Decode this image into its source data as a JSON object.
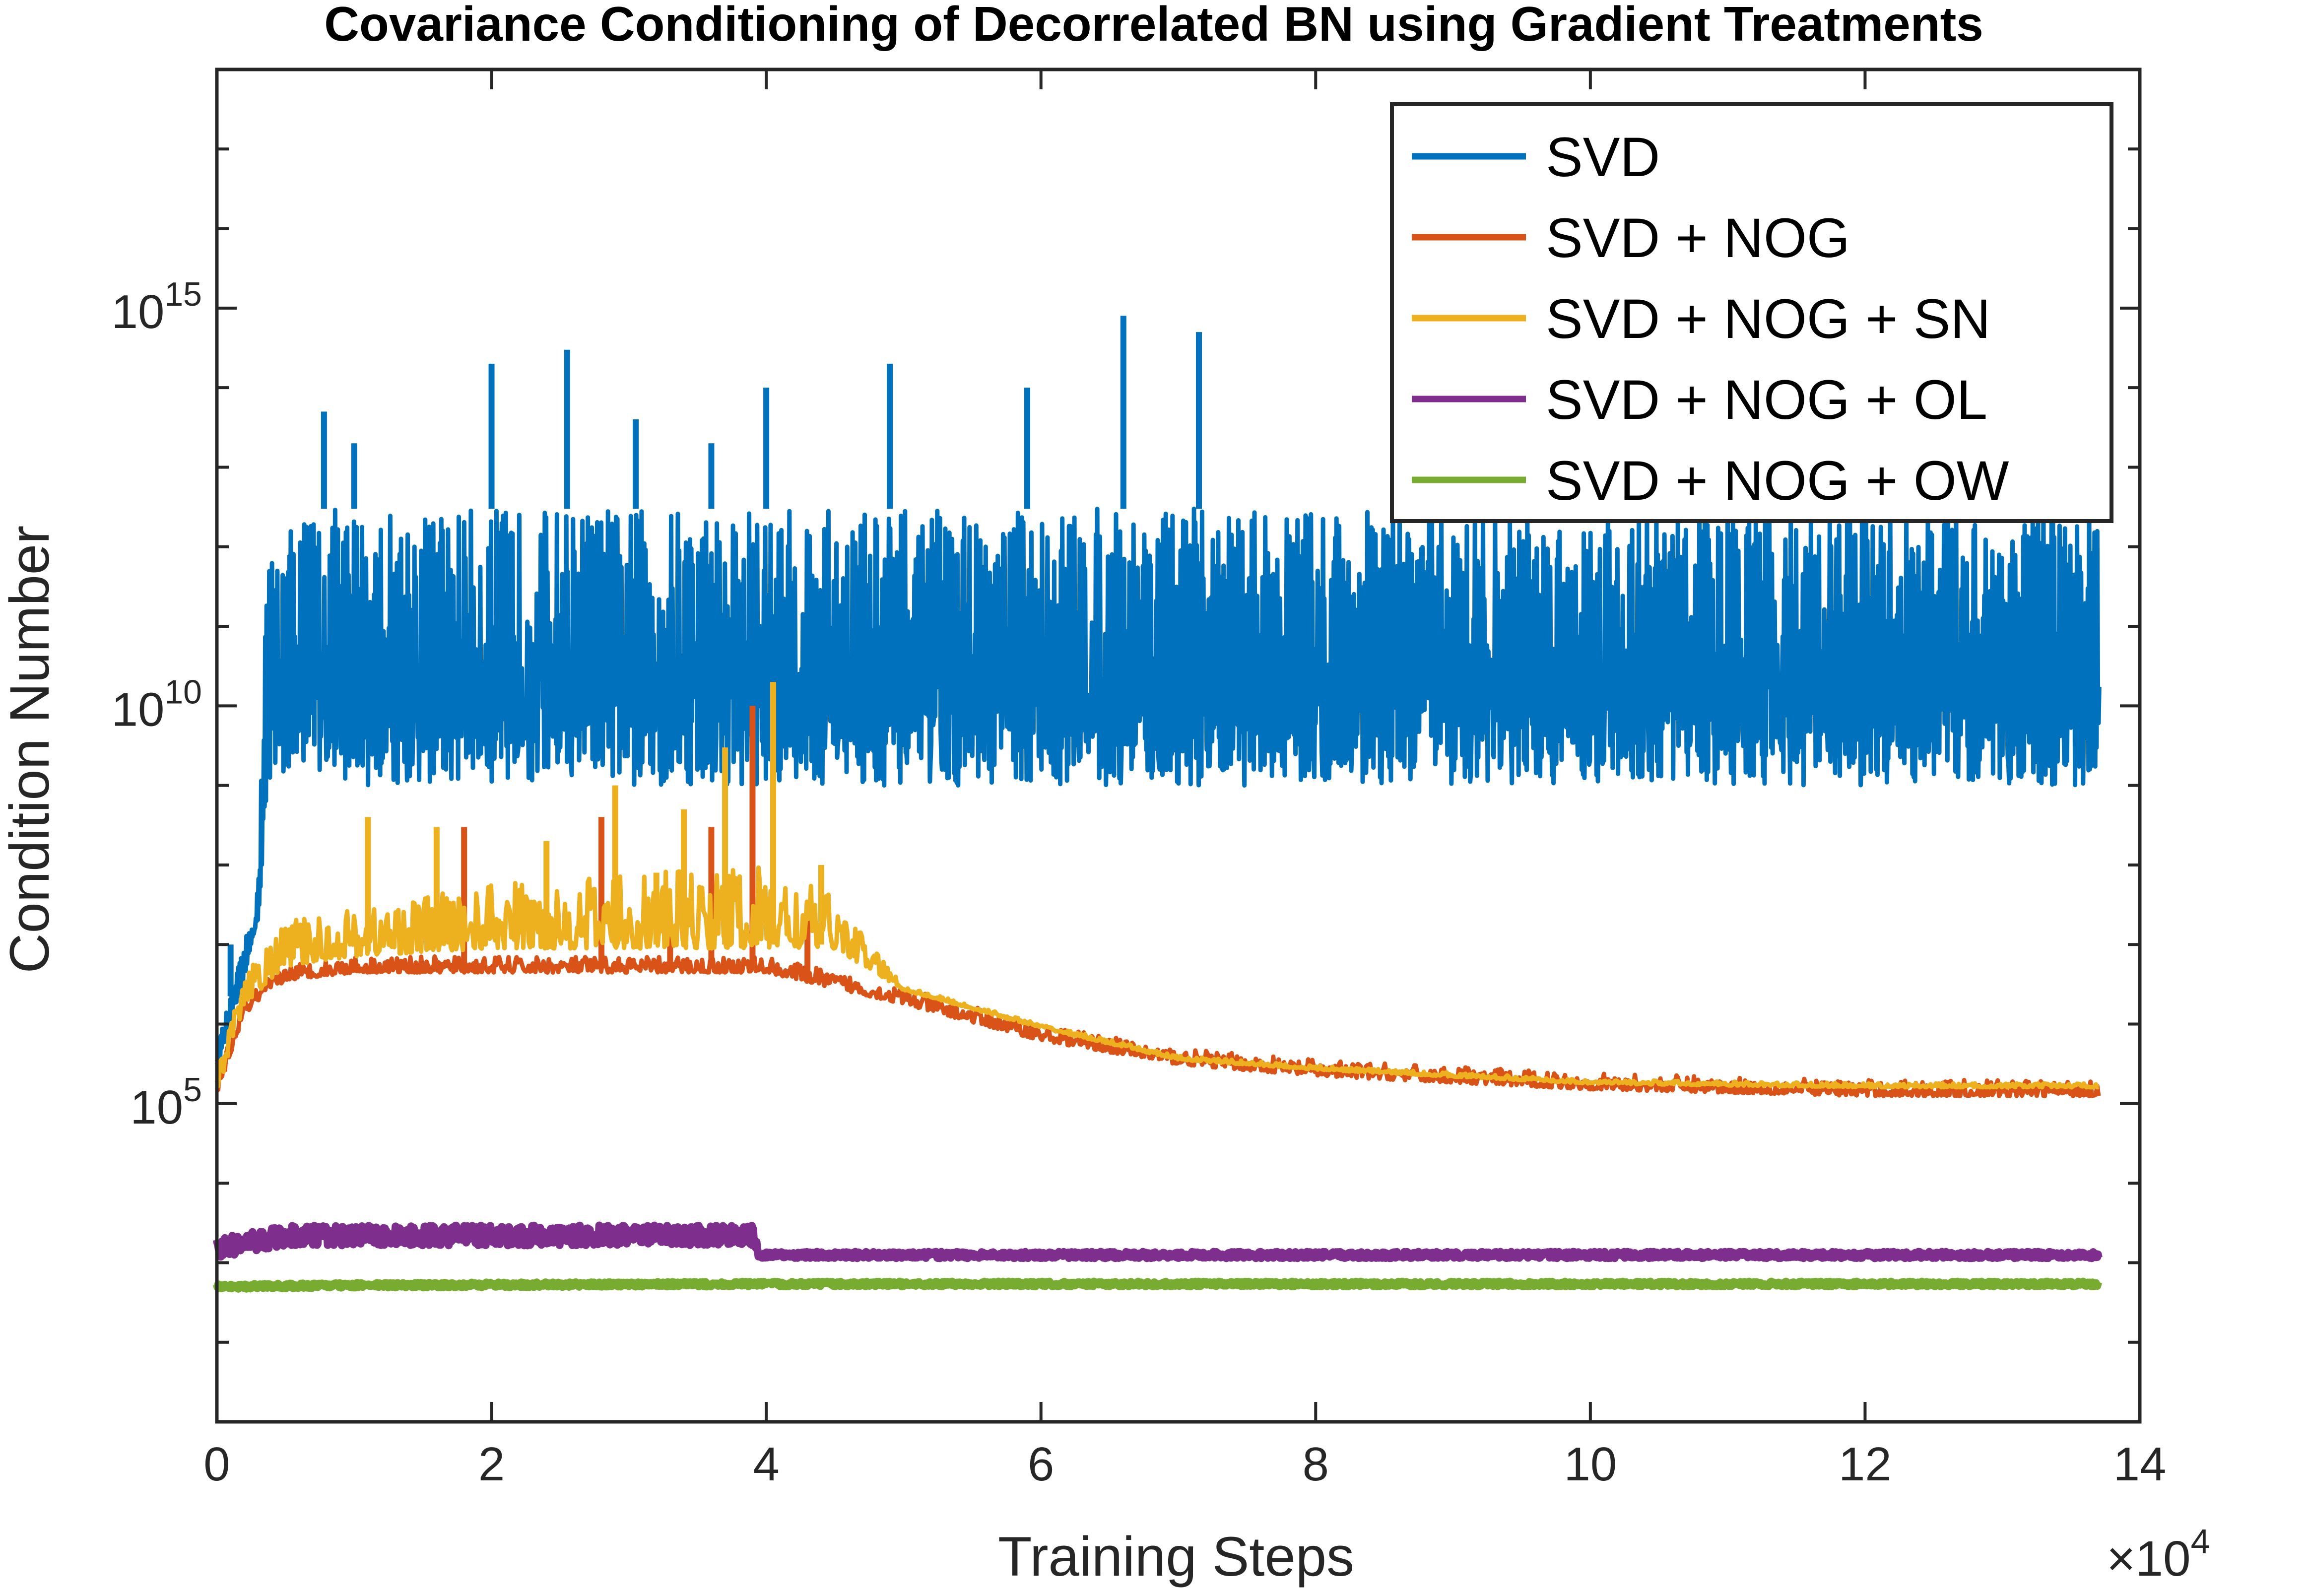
{
  "chart_data": {
    "type": "line",
    "title": "Covariance Conditioning of Decorrelated BN using Gradient Treatments",
    "xlabel": "Training Steps",
    "ylabel": "Condition Number",
    "x_exponent_label": "×10",
    "x_exponent": "4",
    "xlim": [
      0,
      140000
    ],
    "ylim": [
      10,
      1e+18
    ],
    "yscale": "log",
    "x_ticks": [
      0,
      20000,
      40000,
      60000,
      80000,
      100000,
      120000,
      140000
    ],
    "x_tick_labels": [
      "0",
      "2",
      "4",
      "6",
      "8",
      "10",
      "12",
      "14"
    ],
    "y_ticks": [
      100000,
      10000000000,
      1000000000000000
    ],
    "y_tick_base": "10",
    "y_tick_exponents": [
      "5",
      "10",
      "15"
    ],
    "grid": false,
    "legend_position": "top-right",
    "series": [
      {
        "name": "SVD",
        "color": "#0072BD",
        "x": [
          0,
          2000,
          3000,
          3500,
          4000,
          6000,
          10000,
          20000,
          30000,
          40000,
          60000,
          80000,
          100000,
          120000,
          137000
        ],
        "y_low": [
          300000.0,
          4000000.0,
          20000000.0,
          500000000.0,
          1000000000.0,
          2000000000.0,
          1000000000.0,
          1000000000.0,
          1000000000.0,
          1000000000.0,
          1000000000.0,
          1000000000.0,
          1000000000.0,
          1000000000.0,
          1000000000.0
        ],
        "y_high": [
          500000.0,
          10000000.0,
          50000000.0,
          500000000000.0,
          1000000000000.0,
          3000000000000.0,
          3000000000000.0,
          3000000000000.0,
          3000000000000.0,
          3000000000000.0,
          3000000000000.0,
          3000000000000.0,
          3000000000000.0,
          3000000000000.0,
          3000000000000.0
        ],
        "spikes": [
          {
            "x": 1000,
            "y": 10000000.0
          },
          {
            "x": 7800,
            "y": 50000000000000.0
          },
          {
            "x": 10000,
            "y": 20000000000000.0
          },
          {
            "x": 20000,
            "y": 200000000000000.0
          },
          {
            "x": 25500,
            "y": 300000000000000.0
          },
          {
            "x": 30500,
            "y": 40000000000000.0
          },
          {
            "x": 36000,
            "y": 20000000000000.0
          },
          {
            "x": 40000,
            "y": 100000000000000.0
          },
          {
            "x": 49000,
            "y": 200000000000000.0
          },
          {
            "x": 59000,
            "y": 100000000000000.0
          },
          {
            "x": 66000,
            "y": 800000000000000.0
          },
          {
            "x": 71500,
            "y": 500000000000000.0
          },
          {
            "x": 87000,
            "y": 40000000000000.0
          },
          {
            "x": 97000,
            "y": 30000000000000.0
          }
        ]
      },
      {
        "name": "SVD + NOG",
        "color": "#D95319",
        "x": [
          0,
          2000,
          5000,
          10000,
          20000,
          30000,
          40000,
          50000,
          60000,
          70000,
          80000,
          100000,
          120000,
          137000
        ],
        "y": [
          150000.0,
          1500000.0,
          4000000.0,
          5000000.0,
          5000000.0,
          5000000.0,
          5000000.0,
          2000000.0,
          700000.0,
          350000.0,
          250000.0,
          170000.0,
          140000.0,
          140000.0
        ],
        "spikes": [
          {
            "x": 18000,
            "y": 300000000.0
          },
          {
            "x": 28000,
            "y": 400000000.0
          },
          {
            "x": 33000,
            "y": 20000000.0
          },
          {
            "x": 36000,
            "y": 300000000.0
          },
          {
            "x": 39000,
            "y": 10000000000.0
          },
          {
            "x": 43000,
            "y": 30000000.0
          }
        ]
      },
      {
        "name": "SVD + NOG + SN",
        "color": "#EDB120",
        "x": [
          0,
          2000,
          5000,
          10000,
          20000,
          30000,
          40000,
          45000,
          50000,
          60000,
          70000,
          80000,
          100000,
          120000,
          137000
        ],
        "y": [
          150000.0,
          2000000.0,
          6000000.0,
          8000000.0,
          10000000.0,
          10000000.0,
          10000000.0,
          10000000.0,
          3000000.0,
          1000000.0,
          400000.0,
          300000.0,
          200000.0,
          180000.0,
          180000.0
        ],
        "y_high": [
          300000.0,
          4000000.0,
          20000000.0,
          30000000.0,
          60000000.0,
          80000000.0,
          100000000.0,
          40000000.0,
          3000000.0,
          1000000.0,
          400000.0,
          300000.0,
          200000.0,
          180000.0,
          180000.0
        ],
        "spikes": [
          {
            "x": 11000,
            "y": 400000000.0
          },
          {
            "x": 16000,
            "y": 300000000.0
          },
          {
            "x": 24000,
            "y": 200000000.0
          },
          {
            "x": 29000,
            "y": 1000000000.0
          },
          {
            "x": 32000,
            "y": 80000000.0
          },
          {
            "x": 34000,
            "y": 500000000.0
          },
          {
            "x": 37000,
            "y": 3000000000.0
          },
          {
            "x": 40500,
            "y": 20000000000.0
          },
          {
            "x": 44000,
            "y": 100000000.0
          }
        ]
      },
      {
        "name": "SVD + NOG + OL",
        "color": "#7E2F8E",
        "x": [
          0,
          5000,
          10000,
          20000,
          30000,
          39000,
          39500,
          50000,
          60000,
          80000,
          100000,
          120000,
          137000
        ],
        "y": [
          1500,
          2200,
          2200,
          2200,
          2200,
          2200,
          1250,
          1250,
          1250,
          1250,
          1250,
          1250,
          1250
        ],
        "noise": [
          0.25,
          0.25,
          0.25,
          0.25,
          0.25,
          0.25,
          0.08,
          0.08,
          0.08,
          0.08,
          0.08,
          0.08,
          0.08
        ]
      },
      {
        "name": "SVD + NOG + OW",
        "color": "#77AC30",
        "x": [
          0,
          10000,
          40000,
          80000,
          120000,
          137000
        ],
        "y": [
          500,
          520,
          540,
          540,
          540,
          540
        ],
        "noise": [
          0.06,
          0.06,
          0.06,
          0.06,
          0.06,
          0.06
        ]
      }
    ]
  }
}
